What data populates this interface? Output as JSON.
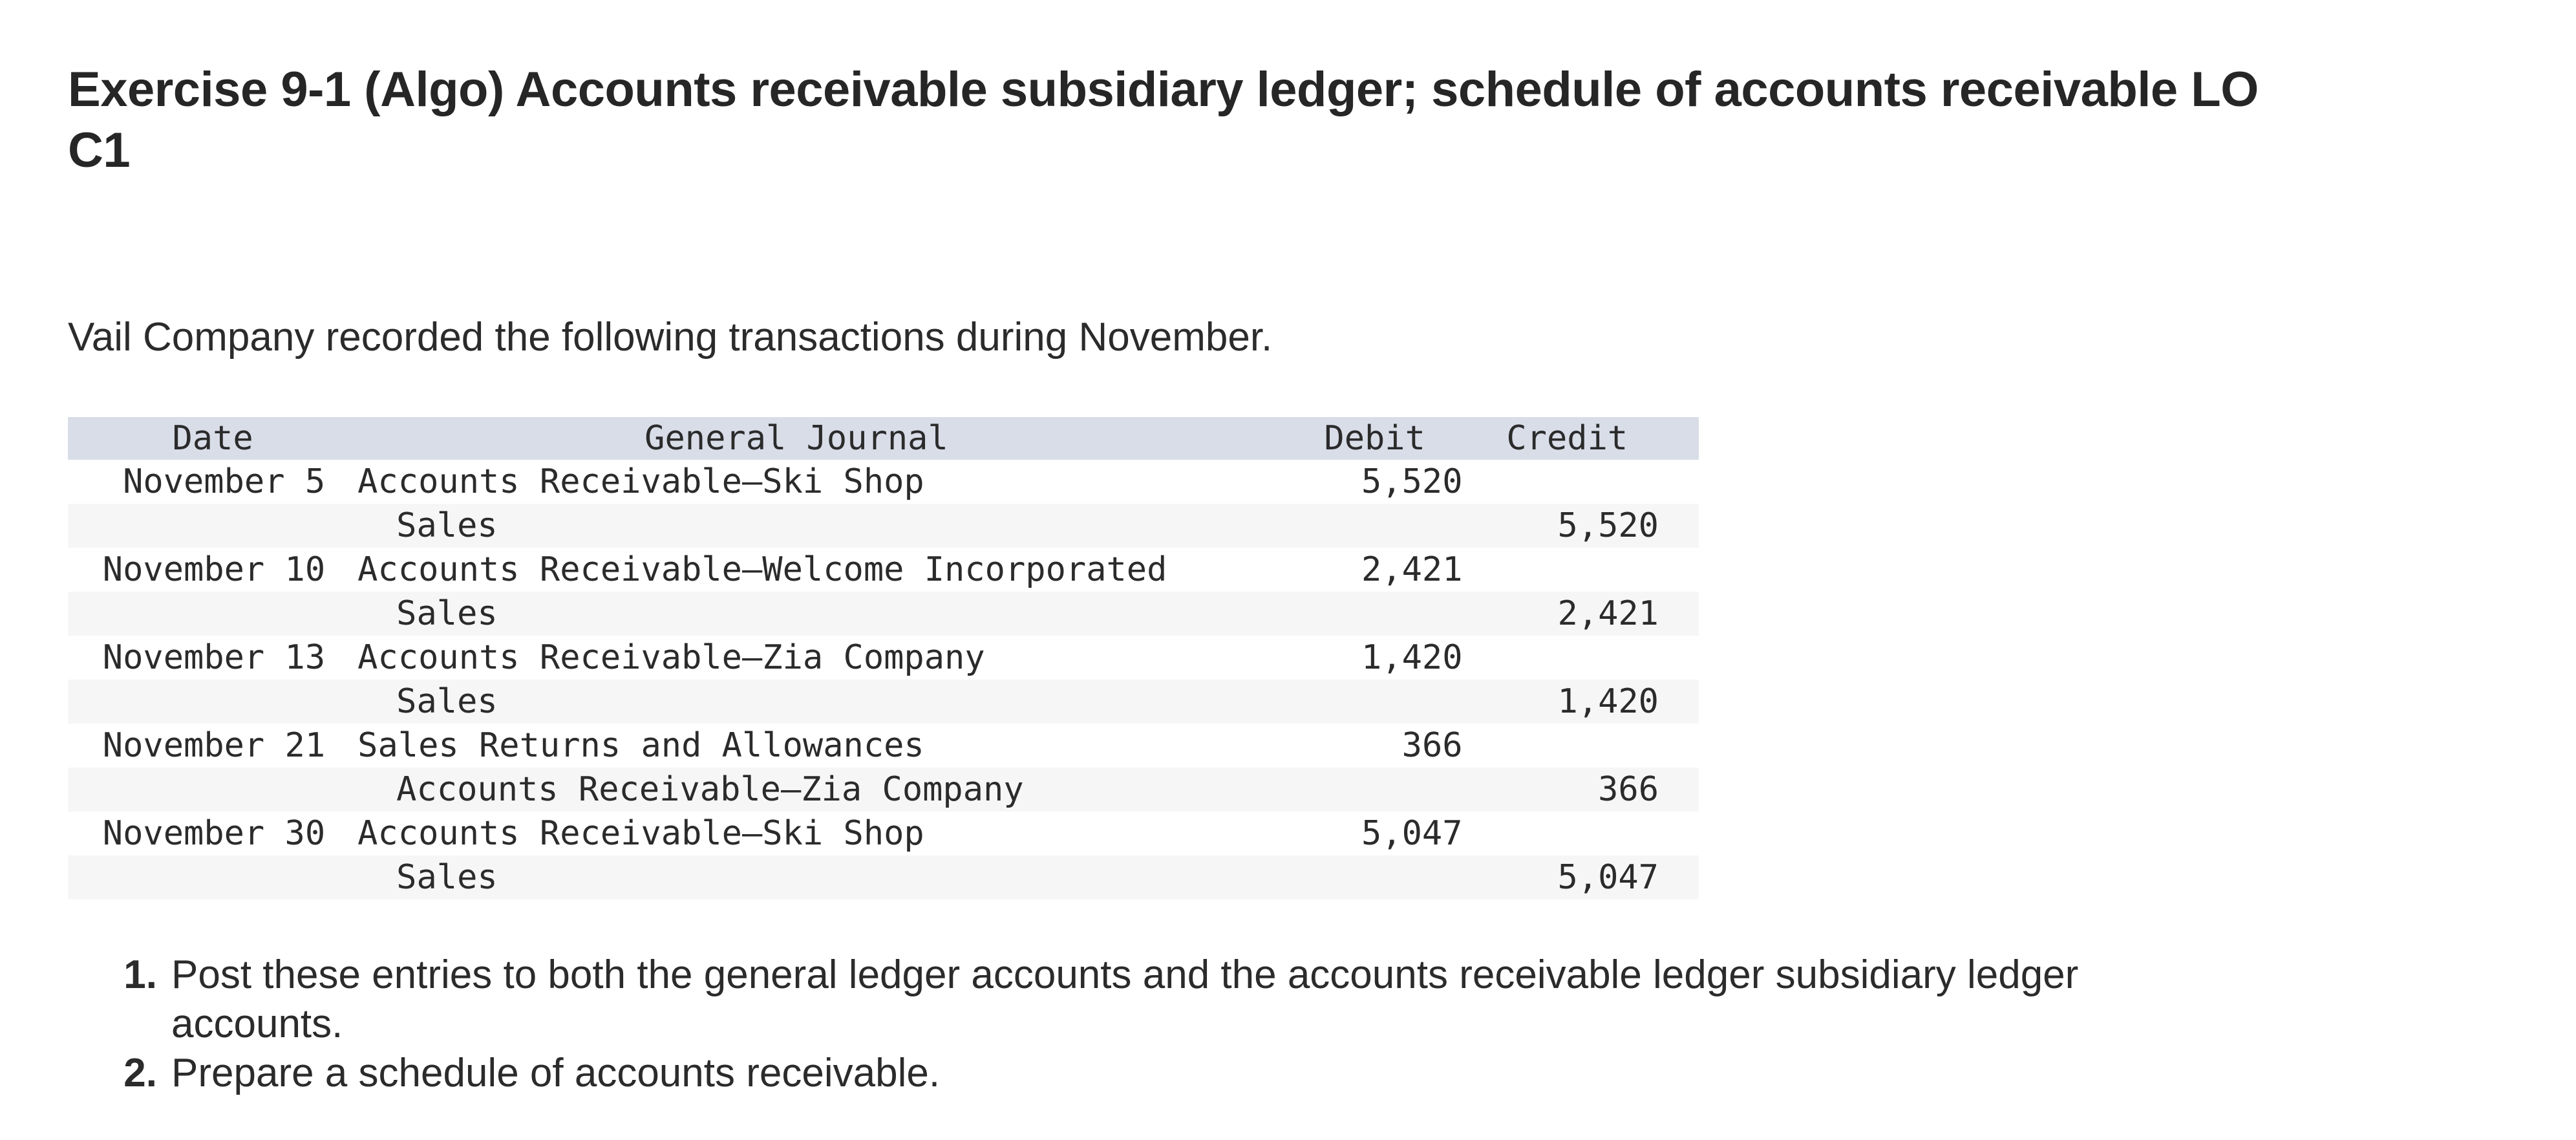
{
  "exercise": {
    "title": "Exercise 9-1 (Algo) Accounts receivable subsidiary ledger; schedule of accounts receivable LO C1",
    "intro": "Vail Company recorded the following transactions during November."
  },
  "journal": {
    "headers": {
      "date": "Date",
      "account": "General Journal",
      "debit": "Debit",
      "credit": "Credit"
    },
    "rows": [
      {
        "date": "November 5",
        "account": "Accounts Receivable–Ski Shop",
        "indent": false,
        "debit": "5,520",
        "credit": ""
      },
      {
        "date": "",
        "account": "Sales",
        "indent": true,
        "debit": "",
        "credit": "5,520"
      },
      {
        "date": "November 10",
        "account": "Accounts Receivable–Welcome Incorporated",
        "indent": false,
        "debit": "2,421",
        "credit": ""
      },
      {
        "date": "",
        "account": "Sales",
        "indent": true,
        "debit": "",
        "credit": "2,421"
      },
      {
        "date": "November 13",
        "account": "Accounts Receivable–Zia Company",
        "indent": false,
        "debit": "1,420",
        "credit": ""
      },
      {
        "date": "",
        "account": "Sales",
        "indent": true,
        "debit": "",
        "credit": "1,420"
      },
      {
        "date": "November 21",
        "account": "Sales Returns and Allowances",
        "indent": false,
        "debit": "366",
        "credit": ""
      },
      {
        "date": "",
        "account": "Accounts Receivable–Zia Company",
        "indent": true,
        "debit": "",
        "credit": "366"
      },
      {
        "date": "November 30",
        "account": "Accounts Receivable–Ski Shop",
        "indent": false,
        "debit": "5,047",
        "credit": ""
      },
      {
        "date": "",
        "account": "Sales",
        "indent": true,
        "debit": "",
        "credit": "5,047"
      }
    ]
  },
  "instructions": [
    {
      "number": "1.",
      "text": "Post these entries to both the general ledger accounts and the accounts receivable ledger subsidiary ledger accounts."
    },
    {
      "number": "2.",
      "text": "Prepare a schedule of accounts receivable."
    }
  ],
  "colors": {
    "header_band": "#d8dde8",
    "stripe": "#f6f6f6",
    "text": "#2b2b2b"
  }
}
